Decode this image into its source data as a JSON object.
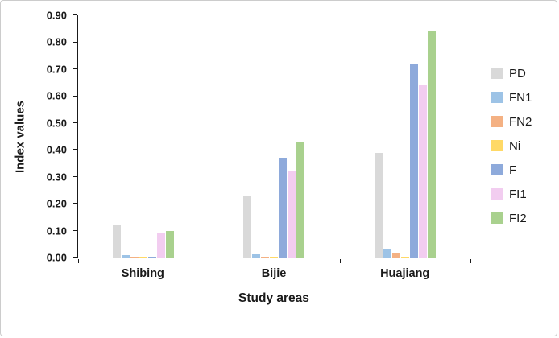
{
  "chart_data": {
    "type": "bar",
    "title": "",
    "xlabel": "Study areas",
    "ylabel": "Index values",
    "ylim": [
      0,
      0.9
    ],
    "ytick_step": 0.1,
    "ytick_format_decimals": 2,
    "grid": false,
    "legend_position": "right",
    "categories": [
      "Shibing",
      "Bijie",
      "Huajiang"
    ],
    "series": [
      {
        "name": "PD",
        "color": "#d9d9d9",
        "values": [
          0.12,
          0.23,
          0.39
        ]
      },
      {
        "name": "FN1",
        "color": "#9dc3e6",
        "values": [
          0.01,
          0.012,
          0.034
        ]
      },
      {
        "name": "FN2",
        "color": "#f4b183",
        "values": [
          0.003,
          0.004,
          0.015
        ]
      },
      {
        "name": "Ni",
        "color": "#ffd966",
        "values": [
          0.002,
          0.002,
          0.004
        ]
      },
      {
        "name": "F",
        "color": "#8eaadb",
        "values": [
          0.004,
          0.37,
          0.72
        ]
      },
      {
        "name": "FI1",
        "color": "#f2cdf0",
        "values": [
          0.09,
          0.32,
          0.64
        ]
      },
      {
        "name": "FI2",
        "color": "#a9d18e",
        "values": [
          0.1,
          0.43,
          0.84
        ]
      }
    ]
  }
}
